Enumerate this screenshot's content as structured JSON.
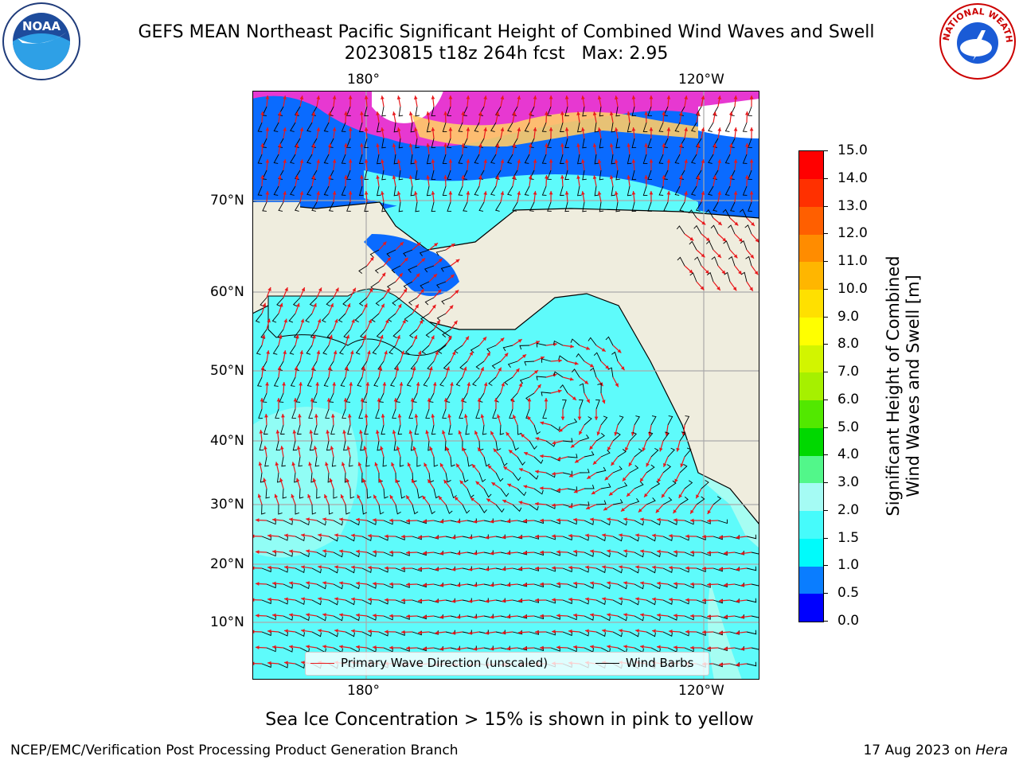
{
  "header": {
    "title_line1": "GEFS MEAN Northeast Pacific Significant Height of Combined Wind Waves and Swell",
    "title_line2": "20230815 t18z 264h fcst   Max: 2.95"
  },
  "logos": {
    "left": "noaa-logo",
    "right": "nws-logo",
    "noaa_text": "NOAA",
    "nws_text": "NATIONAL WEATHER SERVICE"
  },
  "map": {
    "lon_labels": [
      "180°",
      "120°W"
    ],
    "lat_labels": [
      "70°N",
      "60°N",
      "50°N",
      "40°N",
      "30°N",
      "20°N",
      "10°N"
    ],
    "colors": {
      "land": "#efedde",
      "ocean_low": "#5efbfb",
      "ocean_mid": "#a6fdf2",
      "ice_pink": "#ff33cc",
      "ice_orange": "#ffcc66",
      "deep_blue": "#0a6bff",
      "grid": "#aaaaaa",
      "wave_arrow": "#e8191c",
      "wind_barb": "#000000"
    }
  },
  "legend": {
    "wave_label": "Primary Wave Direction (unscaled)",
    "wind_label": "Wind Barbs"
  },
  "colorbar": {
    "label_line1": "Significant Height of Combined",
    "label_line2": "Wind Waves and Swell [m]",
    "ticks": [
      "0.0",
      "0.5",
      "1.0",
      "1.5",
      "2.0",
      "3.0",
      "4.0",
      "5.0",
      "6.0",
      "7.0",
      "8.0",
      "9.0",
      "10.0",
      "11.0",
      "12.0",
      "13.0",
      "14.0",
      "15.0"
    ],
    "colors": [
      "#0000fe",
      "#0a7dff",
      "#00fbfb",
      "#46fbfb",
      "#a5fbf4",
      "#52f78a",
      "#00d800",
      "#52e800",
      "#a6f000",
      "#d2f500",
      "#ffff00",
      "#ffe000",
      "#ffb600",
      "#ff8c00",
      "#ff5f00",
      "#ff3000",
      "#ff0000"
    ]
  },
  "note": "Sea Ice Concentration > 15% is shown in pink to yellow",
  "footer": {
    "left": "NCEP/EMC/Verification Post Processing Product Generation Branch",
    "right_prefix": "17 Aug 2023 on ",
    "right_host": "Hera"
  }
}
